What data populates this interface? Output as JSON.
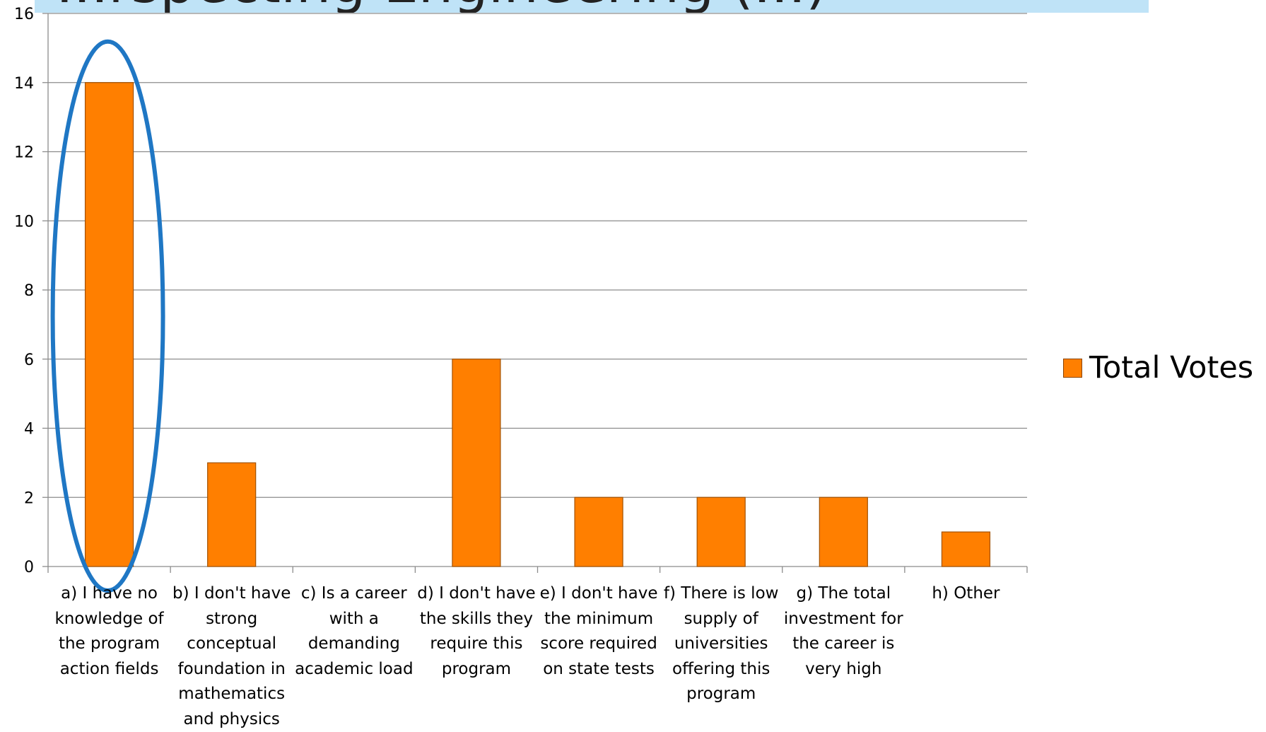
{
  "title": "...rspecting Engineering (...)",
  "chart_data": {
    "type": "bar",
    "categories": [
      "a) I have no knowledge of the program action fields",
      "b) I don't have strong conceptual foundation in mathematics and physics",
      "c) Is a career with a demanding academic load",
      "d) I don't have the skills they require this program",
      "e) I don't have the minimum score required on state tests",
      "f) There is low supply of universities offering this program",
      "g) The total investment for the career is very high",
      "h) Other"
    ],
    "series": [
      {
        "name": "Total Votes",
        "values": [
          14,
          3,
          0,
          6,
          2,
          2,
          2,
          1
        ],
        "color": "#ff7f00"
      }
    ],
    "ylim": [
      0,
      16
    ],
    "yticks": [
      0,
      2,
      4,
      6,
      8,
      10,
      12,
      14,
      16
    ],
    "grid": true,
    "legend_position": "right",
    "highlight": {
      "category_index": 0,
      "shape": "ellipse",
      "color": "#1f77c4"
    },
    "xlabel": "",
    "ylabel": ""
  }
}
